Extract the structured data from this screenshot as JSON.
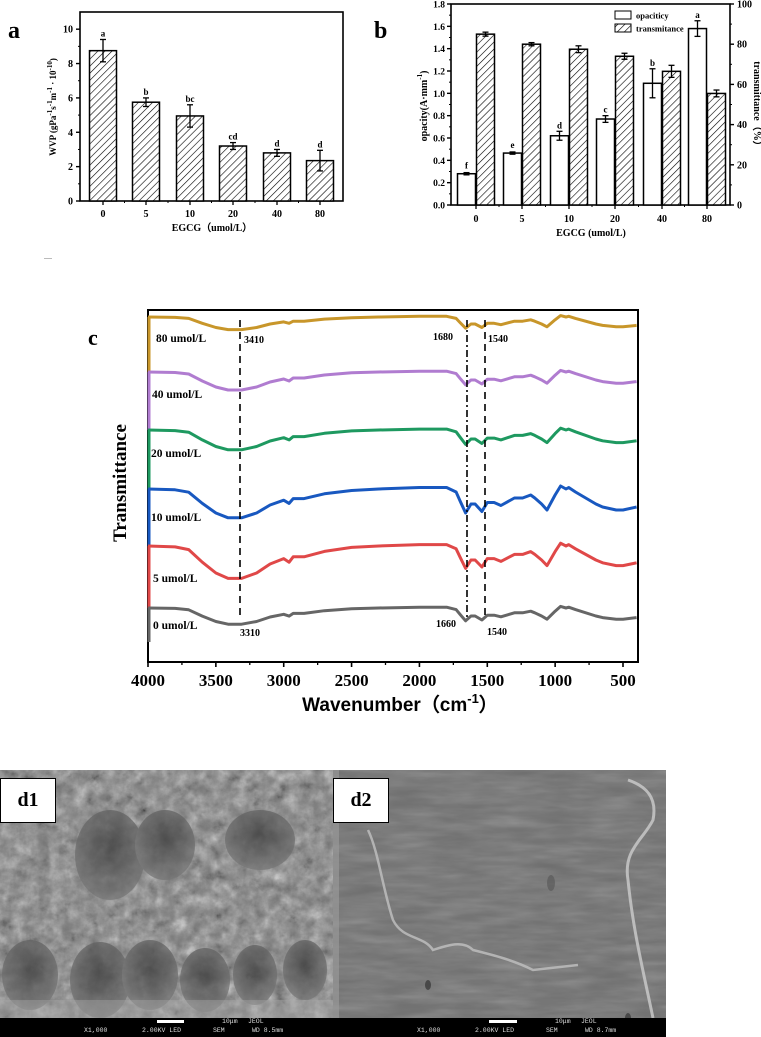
{
  "panels": {
    "a": "a",
    "b": "b",
    "c": "c",
    "d1": "d1",
    "d2": "d2"
  },
  "chart_data": [
    {
      "id": "a",
      "type": "bar",
      "title": "",
      "categories": [
        "0",
        "5",
        "10",
        "20",
        "40",
        "80"
      ],
      "values": [
        8.75,
        5.75,
        4.95,
        3.2,
        2.8,
        2.35
      ],
      "errors": [
        0.65,
        0.25,
        0.65,
        0.2,
        0.2,
        0.6
      ],
      "significance": [
        "a",
        "b",
        "bc",
        "cd",
        "d",
        "d"
      ],
      "xlabel": "EGCG（umol/L）",
      "ylabel": "WVP (gPa⁻¹s⁻¹m⁻¹ · 10⁻¹⁰)",
      "ylim": [
        0,
        11
      ],
      "yticks": [
        "0",
        "2",
        "4",
        "6",
        "8",
        "10"
      ],
      "fill": "hatched",
      "grid": false
    },
    {
      "id": "b",
      "type": "bar",
      "title": "",
      "categories": [
        "0",
        "5",
        "10",
        "20",
        "40",
        "80"
      ],
      "series": [
        {
          "name": "opaciticy",
          "axis": "left",
          "fill": "white",
          "values": [
            0.28,
            0.465,
            0.62,
            0.77,
            1.09,
            1.58
          ],
          "errors": [
            0.01,
            0.01,
            0.04,
            0.03,
            0.13,
            0.07
          ],
          "significance": [
            "f",
            "e",
            "d",
            "c",
            "b",
            "a"
          ]
        },
        {
          "name": "transmitance",
          "axis": "right",
          "fill": "hatched",
          "values": [
            85,
            80,
            77.5,
            74,
            66.5,
            55.5
          ],
          "errors": [
            0.5,
            0.3,
            1.2,
            1.0,
            2.5,
            1.2
          ]
        }
      ],
      "xlabel": "EGCG  (umol/L)",
      "ylabel": "opacity(A·mm⁻¹)",
      "ylabel_right": "transmittance（%）",
      "ylim": [
        0,
        1.8
      ],
      "ylim_right": [
        0,
        100
      ],
      "yticks": [
        "0.0",
        "0.2",
        "0.4",
        "0.6",
        "0.8",
        "1.0",
        "1.2",
        "1.4",
        "1.6",
        "1.8"
      ],
      "yticks_right": [
        "0",
        "20",
        "40",
        "60",
        "80",
        "100"
      ],
      "legend_position": "upper right",
      "grid": false
    },
    {
      "id": "c",
      "type": "line",
      "title": "",
      "xlabel": "Wavenumber（cm⁻¹）",
      "ylabel": "Transmittance",
      "xlim": [
        4000,
        400
      ],
      "xticks": [
        "4000",
        "3500",
        "3000",
        "2500",
        "2000",
        "1500",
        "1000",
        "500"
      ],
      "series": [
        {
          "name": "80 umol/L",
          "color": "#C8962A"
        },
        {
          "name": "40 umol/L",
          "color": "#B07CD0"
        },
        {
          "name": "20 umol/L",
          "color": "#1E9960"
        },
        {
          "name": "10 umol/L",
          "color": "#1858C0"
        },
        {
          "name": "5 umol/L",
          "color": "#E04848"
        },
        {
          "name": "0 umol/L",
          "color": "#666666"
        }
      ],
      "annotations": [
        {
          "x": 3410,
          "label": "3410",
          "style": "dashed"
        },
        {
          "x": 3310,
          "label": "3310",
          "style": "dashed"
        },
        {
          "x": 1680,
          "label": "1680",
          "style": "dash-dot"
        },
        {
          "x": 1660,
          "label": "1660",
          "style": "dash-dot"
        },
        {
          "x": 1540,
          "label": "1540",
          "style": "dashed"
        },
        {
          "x": 1540,
          "label": "1540",
          "style": "dashed"
        }
      ],
      "grid": false
    }
  ],
  "chart_a": {
    "ylabel": "WVP (gPa",
    "xlabel": "EGCG（umol/L）",
    "yticks": [
      "0",
      "2",
      "4",
      "6",
      "8",
      "10"
    ],
    "cats": [
      "0",
      "5",
      "10",
      "20",
      "40",
      "80"
    ],
    "sig": [
      "a",
      "b",
      "bc",
      "cd",
      "d",
      "d"
    ]
  },
  "chart_b": {
    "ylabel": "opacity(A·mm",
    "ylabel_right": "transmittance（%）",
    "xlabel": "EGCG  (umol/L)",
    "legend": [
      "opaciticy",
      "transmitance"
    ],
    "yticks": [
      "0.0",
      "0.2",
      "0.4",
      "0.6",
      "0.8",
      "1.0",
      "1.2",
      "1.4",
      "1.6",
      "1.8"
    ],
    "yticks_right": [
      "0",
      "20",
      "40",
      "60",
      "80",
      "100"
    ],
    "cats": [
      "0",
      "5",
      "10",
      "20",
      "40",
      "80"
    ],
    "sig": [
      "f",
      "e",
      "d",
      "c",
      "b",
      "a"
    ]
  },
  "chart_c": {
    "ylabel": "Transmittance",
    "xlabel": "Wavenumber（cm",
    "xticks": [
      "4000",
      "3500",
      "3000",
      "2500",
      "2000",
      "1500",
      "1000",
      "500"
    ],
    "series_labels": [
      "80 umol/L",
      "40 umol/L",
      "20 umol/L",
      "10 umol/L",
      "5 umol/L",
      "0 umol/L"
    ],
    "ann": {
      "top_3410": "3410",
      "top_1680": "1680",
      "top_1540": "1540",
      "bot_3310": "3310",
      "bot_1660": "1660",
      "bot_1540": "1540"
    }
  },
  "sem": {
    "d1": {
      "mag": "X1,000",
      "kv": "2.00KV LED",
      "mode": "SEM",
      "scale": "10μm",
      "brand": "JEOL",
      "wd": "WD 8.5mm"
    },
    "d2": {
      "mag": "X1,000",
      "kv": "2.00KV LED",
      "mode": "SEM",
      "scale": "10μm",
      "brand": "JEOL",
      "wd": "WD 8.7mm"
    }
  }
}
